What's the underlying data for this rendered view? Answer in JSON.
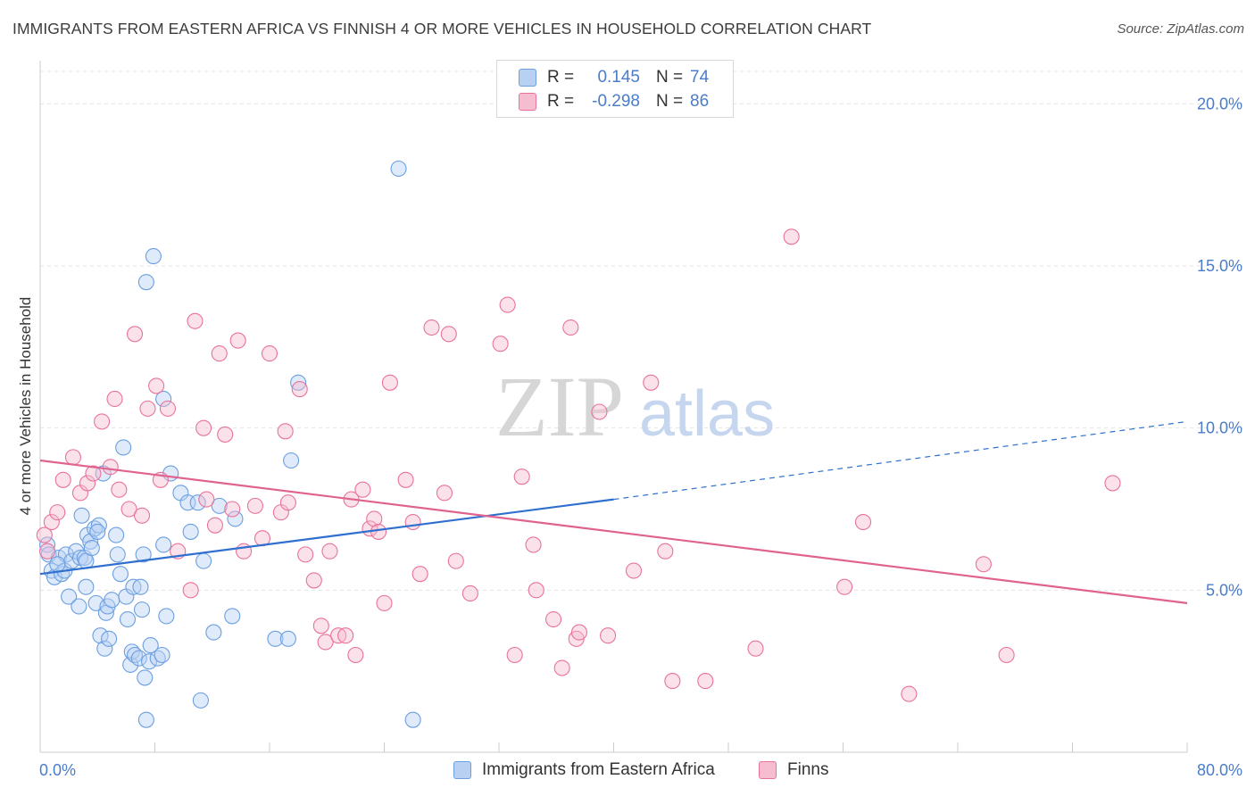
{
  "title": "IMMIGRANTS FROM EASTERN AFRICA VS FINNISH 4 OR MORE VEHICLES IN HOUSEHOLD CORRELATION CHART",
  "source": "Source: ZipAtlas.com",
  "watermark": {
    "zip": "ZIP",
    "atlas": "atlas"
  },
  "colors": {
    "blue": "#6b9fe0",
    "blue_fill": "#b8d1f3",
    "pink": "#e8739a",
    "pink_fill": "#f6bdd0",
    "blue_line": "#2f6fcf",
    "pink_line": "#e0628f",
    "tick_text": "#4a7cc9"
  },
  "legend": {
    "rows": [
      {
        "r_label": "R =",
        "r_value": "0.145",
        "n_label": "N =",
        "n_value": "74"
      },
      {
        "r_label": "R =",
        "r_value": "-0.298",
        "n_label": "N =",
        "n_value": "86"
      }
    ]
  },
  "bottom_legend": {
    "series1": "Immigrants from Eastern Africa",
    "series2": "Finns"
  },
  "chart_data": {
    "type": "scatter",
    "title": "IMMIGRANTS FROM EASTERN AFRICA VS FINNISH 4 OR MORE VEHICLES IN HOUSEHOLD CORRELATION CHART",
    "xlabel": "",
    "ylabel": "4 or more Vehicles in Household",
    "xlim": [
      0,
      80
    ],
    "ylim": [
      0,
      21
    ],
    "x_tick_labels": [
      "0.0%",
      "80.0%"
    ],
    "y_tick_labels": [
      "5.0%",
      "10.0%",
      "15.0%",
      "20.0%"
    ],
    "y_ticks": [
      5,
      10,
      15,
      20
    ],
    "grid": true,
    "legend_position": "top-center",
    "series": [
      {
        "name": "Immigrants from Eastern Africa",
        "color": "#6b9fe0",
        "r": 0.145,
        "n": 74,
        "trend": {
          "x": [
            0,
            40
          ],
          "y": [
            5.5,
            7.8
          ],
          "dashed_to": [
            80,
            10.2
          ]
        },
        "points": [
          [
            0.5,
            6.4
          ],
          [
            0.6,
            6.1
          ],
          [
            0.8,
            5.6
          ],
          [
            1.0,
            5.4
          ],
          [
            1.3,
            6.0
          ],
          [
            1.5,
            5.5
          ],
          [
            1.7,
            5.6
          ],
          [
            1.8,
            6.1
          ],
          [
            2.0,
            4.8
          ],
          [
            2.2,
            5.9
          ],
          [
            2.5,
            6.2
          ],
          [
            2.8,
            6.0
          ],
          [
            2.7,
            4.5
          ],
          [
            2.9,
            7.3
          ],
          [
            3.1,
            6.0
          ],
          [
            3.2,
            5.9
          ],
          [
            3.2,
            5.1
          ],
          [
            3.3,
            6.7
          ],
          [
            3.5,
            6.5
          ],
          [
            3.6,
            6.3
          ],
          [
            3.8,
            6.9
          ],
          [
            3.9,
            4.6
          ],
          [
            4.1,
            7.0
          ],
          [
            4.2,
            3.6
          ],
          [
            4.4,
            8.6
          ],
          [
            4.5,
            3.2
          ],
          [
            4.6,
            4.3
          ],
          [
            4.7,
            4.5
          ],
          [
            4.8,
            3.5
          ],
          [
            5.0,
            4.7
          ],
          [
            5.3,
            6.7
          ],
          [
            5.4,
            6.1
          ],
          [
            5.6,
            5.5
          ],
          [
            5.8,
            9.4
          ],
          [
            6.0,
            4.8
          ],
          [
            6.1,
            4.1
          ],
          [
            6.3,
            2.7
          ],
          [
            6.4,
            3.1
          ],
          [
            6.5,
            5.1
          ],
          [
            6.6,
            3.0
          ],
          [
            6.9,
            2.9
          ],
          [
            7.0,
            5.1
          ],
          [
            7.1,
            4.4
          ],
          [
            7.2,
            6.1
          ],
          [
            7.3,
            2.3
          ],
          [
            7.4,
            1.0
          ],
          [
            7.6,
            2.8
          ],
          [
            7.7,
            3.3
          ],
          [
            8.2,
            2.9
          ],
          [
            8.5,
            3.0
          ],
          [
            8.6,
            6.4
          ],
          [
            8.8,
            4.2
          ],
          [
            9.1,
            8.6
          ],
          [
            9.8,
            8.0
          ],
          [
            10.3,
            7.7
          ],
          [
            10.5,
            6.8
          ],
          [
            11.0,
            7.7
          ],
          [
            11.2,
            1.6
          ],
          [
            11.4,
            5.9
          ],
          [
            12.1,
            3.7
          ],
          [
            13.4,
            4.2
          ],
          [
            13.6,
            7.2
          ],
          [
            16.4,
            3.5
          ],
          [
            17.3,
            3.5
          ],
          [
            17.5,
            9.0
          ],
          [
            18.0,
            11.4
          ],
          [
            7.4,
            14.5
          ],
          [
            7.9,
            15.3
          ],
          [
            8.6,
            10.9
          ],
          [
            25.0,
            18.0
          ],
          [
            26.0,
            1.0
          ],
          [
            12.5,
            7.6
          ],
          [
            4.0,
            6.8
          ],
          [
            1.2,
            5.8
          ]
        ]
      },
      {
        "name": "Finns",
        "color": "#e8739a",
        "r": -0.298,
        "n": 86,
        "trend": {
          "x": [
            0,
            80
          ],
          "y": [
            9.0,
            4.6
          ]
        },
        "points": [
          [
            0.3,
            6.7
          ],
          [
            0.5,
            6.2
          ],
          [
            0.8,
            7.1
          ],
          [
            1.2,
            7.4
          ],
          [
            1.6,
            8.4
          ],
          [
            2.3,
            9.1
          ],
          [
            2.8,
            8.0
          ],
          [
            3.3,
            8.3
          ],
          [
            3.7,
            8.6
          ],
          [
            4.3,
            10.2
          ],
          [
            4.9,
            8.8
          ],
          [
            5.2,
            10.9
          ],
          [
            5.5,
            8.1
          ],
          [
            6.2,
            7.5
          ],
          [
            6.6,
            12.9
          ],
          [
            7.1,
            7.3
          ],
          [
            7.5,
            10.6
          ],
          [
            8.1,
            11.3
          ],
          [
            8.4,
            8.4
          ],
          [
            8.9,
            10.6
          ],
          [
            9.6,
            6.2
          ],
          [
            10.5,
            5.0
          ],
          [
            10.8,
            13.3
          ],
          [
            11.4,
            10.0
          ],
          [
            11.6,
            7.8
          ],
          [
            12.2,
            7.0
          ],
          [
            12.5,
            12.3
          ],
          [
            12.9,
            9.8
          ],
          [
            13.4,
            7.5
          ],
          [
            13.8,
            12.7
          ],
          [
            14.2,
            6.2
          ],
          [
            15.0,
            7.6
          ],
          [
            15.5,
            6.6
          ],
          [
            16.0,
            12.3
          ],
          [
            16.8,
            7.4
          ],
          [
            17.1,
            9.9
          ],
          [
            17.3,
            7.7
          ],
          [
            18.1,
            11.2
          ],
          [
            18.5,
            6.1
          ],
          [
            19.1,
            5.3
          ],
          [
            19.6,
            3.9
          ],
          [
            19.9,
            3.4
          ],
          [
            20.2,
            6.2
          ],
          [
            20.8,
            3.6
          ],
          [
            21.3,
            3.6
          ],
          [
            21.7,
            7.8
          ],
          [
            22.0,
            3.0
          ],
          [
            22.5,
            8.1
          ],
          [
            23.0,
            6.9
          ],
          [
            23.3,
            7.2
          ],
          [
            23.6,
            6.8
          ],
          [
            24.0,
            4.6
          ],
          [
            24.4,
            11.4
          ],
          [
            25.5,
            8.4
          ],
          [
            26.0,
            7.1
          ],
          [
            26.5,
            5.5
          ],
          [
            27.3,
            13.1
          ],
          [
            28.2,
            8.0
          ],
          [
            28.5,
            12.9
          ],
          [
            29.0,
            5.9
          ],
          [
            30.0,
            4.9
          ],
          [
            32.1,
            12.6
          ],
          [
            32.6,
            13.8
          ],
          [
            33.1,
            3.0
          ],
          [
            33.6,
            8.5
          ],
          [
            34.4,
            6.4
          ],
          [
            34.6,
            5.0
          ],
          [
            35.8,
            4.1
          ],
          [
            36.4,
            2.6
          ],
          [
            37.0,
            13.1
          ],
          [
            37.4,
            3.5
          ],
          [
            37.6,
            3.7
          ],
          [
            39.0,
            10.5
          ],
          [
            39.6,
            3.6
          ],
          [
            41.4,
            5.6
          ],
          [
            42.6,
            11.4
          ],
          [
            43.6,
            6.2
          ],
          [
            44.1,
            2.2
          ],
          [
            46.4,
            2.2
          ],
          [
            49.9,
            3.2
          ],
          [
            52.4,
            15.9
          ],
          [
            56.1,
            5.1
          ],
          [
            57.4,
            7.1
          ],
          [
            60.6,
            1.8
          ],
          [
            65.8,
            5.8
          ],
          [
            67.4,
            3.0
          ],
          [
            74.8,
            8.3
          ]
        ]
      }
    ]
  }
}
